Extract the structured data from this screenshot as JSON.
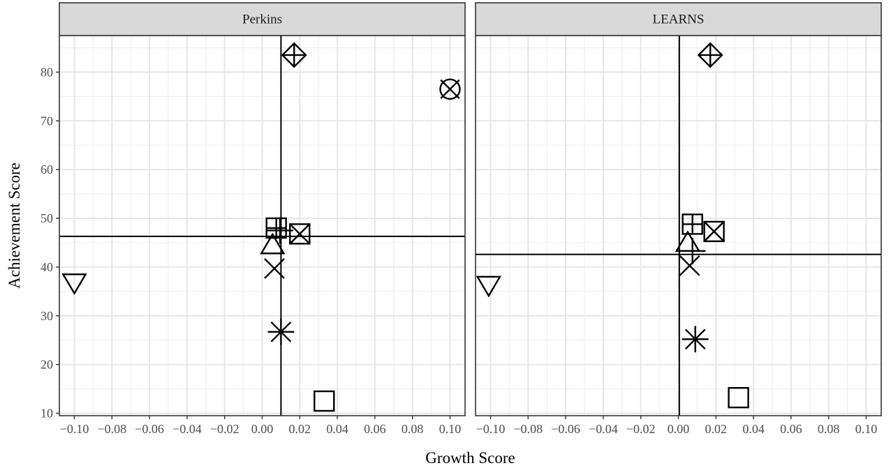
{
  "chart_data": {
    "type": "scatter",
    "xlabel": "Growth Score",
    "ylabel": "Achievement Score",
    "xlim": [
      -0.108,
      0.108
    ],
    "ylim": [
      9.5,
      87.5
    ],
    "grid": true,
    "x_ticks": [
      {
        "value": -0.1,
        "label": "−0.10"
      },
      {
        "value": -0.08,
        "label": "−0.08"
      },
      {
        "value": -0.06,
        "label": "−0.06"
      },
      {
        "value": -0.04,
        "label": "−0.04"
      },
      {
        "value": -0.02,
        "label": "−0.02"
      },
      {
        "value": 0.0,
        "label": "0.00"
      },
      {
        "value": 0.02,
        "label": "0.02"
      },
      {
        "value": 0.04,
        "label": "0.04"
      },
      {
        "value": 0.06,
        "label": "0.06"
      },
      {
        "value": 0.08,
        "label": "0.08"
      },
      {
        "value": 0.1,
        "label": "0.10"
      }
    ],
    "y_ticks": [
      {
        "value": 10,
        "label": "10"
      },
      {
        "value": 20,
        "label": "20"
      },
      {
        "value": 30,
        "label": "30"
      },
      {
        "value": 40,
        "label": "40"
      },
      {
        "value": 50,
        "label": "50"
      },
      {
        "value": 60,
        "label": "60"
      },
      {
        "value": 70,
        "label": "70"
      },
      {
        "value": 80,
        "label": "80"
      }
    ],
    "panels": [
      {
        "strip": "Perkins",
        "ref_x": 0.01,
        "ref_y": 46.3,
        "points": [
          {
            "shape": "triangle-down",
            "x": -0.1,
            "y": 37.0
          },
          {
            "shape": "diamond-plus",
            "x": 0.017,
            "y": 83.5
          },
          {
            "shape": "circle-x",
            "x": 0.1,
            "y": 76.5
          },
          {
            "shape": "square-plus",
            "x": 0.0075,
            "y": 48.0
          },
          {
            "shape": "square-x",
            "x": 0.02,
            "y": 46.8
          },
          {
            "shape": "triangle-up",
            "x": 0.0055,
            "y": 44.3
          },
          {
            "shape": "plus",
            "x": 0.0095,
            "y": 47.5
          },
          {
            "shape": "x",
            "x": 0.0065,
            "y": 39.7
          },
          {
            "shape": "asterisk",
            "x": 0.01,
            "y": 26.7
          },
          {
            "shape": "square",
            "x": 0.033,
            "y": 12.5
          }
        ]
      },
      {
        "strip": "LEARNS",
        "ref_x": 0.0005,
        "ref_y": 42.6,
        "points": [
          {
            "shape": "triangle-down",
            "x": -0.101,
            "y": 36.5
          },
          {
            "shape": "diamond-plus",
            "x": 0.017,
            "y": 83.5
          },
          {
            "shape": "square-plus",
            "x": 0.0075,
            "y": 48.8
          },
          {
            "shape": "square-x",
            "x": 0.019,
            "y": 47.3
          },
          {
            "shape": "triangle-up",
            "x": 0.005,
            "y": 44.8
          },
          {
            "shape": "plus",
            "x": 0.0075,
            "y": 43.3
          },
          {
            "shape": "x",
            "x": 0.006,
            "y": 40.3
          },
          {
            "shape": "asterisk",
            "x": 0.009,
            "y": 25.2
          },
          {
            "shape": "square",
            "x": 0.032,
            "y": 13.2
          }
        ]
      }
    ]
  }
}
